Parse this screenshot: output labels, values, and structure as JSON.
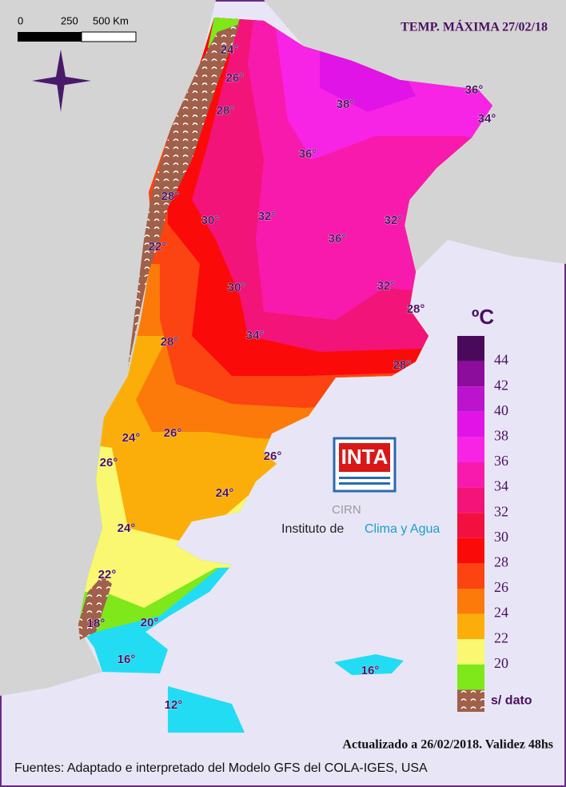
{
  "header": {
    "title": "TEMP. MÁXIMA 27/02/18"
  },
  "scale_bar": {
    "labels": [
      "0",
      "250",
      "500 Km"
    ]
  },
  "isotherm_labels": [
    "24°",
    "26°",
    "28°",
    "38°",
    "36°",
    "34°",
    "36°",
    "28°",
    "30°",
    "32°",
    "32°",
    "22°",
    "36°",
    "30°",
    "32°",
    "28°",
    "34°",
    "28°",
    "28°",
    "24°",
    "26°",
    "26°",
    "26°",
    "24°",
    "24°",
    "22°",
    "18°",
    "20°",
    "16°",
    "16°",
    "12°"
  ],
  "legend": {
    "title": "ºC",
    "ticks": [
      44,
      42,
      40,
      38,
      36,
      34,
      32,
      30,
      28,
      26,
      24,
      22,
      20
    ],
    "colors": [
      "#4a0a5c",
      "#8c0c9c",
      "#bb14cc",
      "#e014e6",
      "#f724e6",
      "#f81aac",
      "#f21478",
      "#f21040",
      "#fb0a0a",
      "#fb4412",
      "#fb7a0a",
      "#fbae0a",
      "#f9f870",
      "#7ee81a",
      "#14dcf6"
    ],
    "no_data": "s/ dato"
  },
  "logo": {
    "mark": "INTA",
    "unit": "CIRN",
    "name": "Instituto de",
    "name_highlight": "Clima y Agua"
  },
  "footer": {
    "updated": "Actualizado a 26/02/2018. Validez 48hs",
    "sources": "Fuentes: Adaptado e interpretado del Modelo GFS del COLA-IGES, USA"
  }
}
